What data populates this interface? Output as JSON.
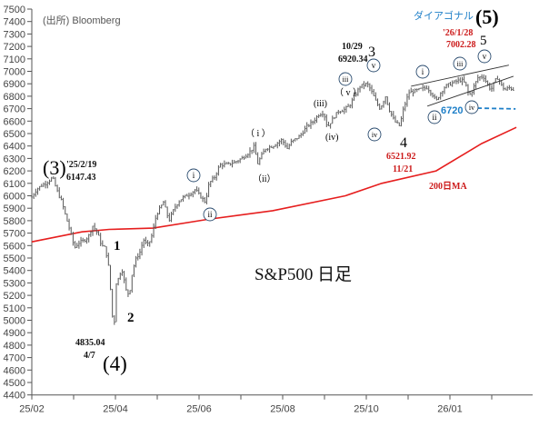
{
  "chart_data": {
    "type": "ohlc",
    "title": "S&P500 日足",
    "source": "(出所) Bloomberg",
    "xunit": "months since 2025/02",
    "ylim": [
      4400,
      7500
    ],
    "yticks": [
      4400,
      4500,
      4600,
      4700,
      4800,
      4900,
      5000,
      5100,
      5200,
      5300,
      5400,
      5500,
      5600,
      5700,
      5800,
      5900,
      6000,
      6100,
      6200,
      6300,
      6400,
      6500,
      6600,
      6700,
      6800,
      6900,
      7000,
      7100,
      7200,
      7300,
      7400,
      7500
    ],
    "xticks": [
      {
        "t": 0,
        "label": "25/02"
      },
      {
        "t": 1,
        "label": ""
      },
      {
        "t": 2,
        "label": "25/04"
      },
      {
        "t": 3,
        "label": ""
      },
      {
        "t": 4,
        "label": "25/06"
      },
      {
        "t": 5,
        "label": ""
      },
      {
        "t": 6,
        "label": "25/08"
      },
      {
        "t": 7,
        "label": ""
      },
      {
        "t": 8,
        "label": "25/10"
      },
      {
        "t": 9,
        "label": ""
      },
      {
        "t": 10,
        "label": "26/01"
      },
      {
        "t": 11,
        "label": ""
      }
    ],
    "price_path": [
      [
        0,
        5990
      ],
      [
        0.11,
        6050
      ],
      [
        0.22,
        6080
      ],
      [
        0.33,
        6100
      ],
      [
        0.5,
        6147
      ],
      [
        0.59,
        6050
      ],
      [
        0.72,
        5950
      ],
      [
        0.8,
        5850
      ],
      [
        0.93,
        5700
      ],
      [
        1.02,
        5580
      ],
      [
        1.11,
        5620
      ],
      [
        1.24,
        5640
      ],
      [
        1.35,
        5670
      ],
      [
        1.46,
        5760
      ],
      [
        1.57,
        5700
      ],
      [
        1.67,
        5600
      ],
      [
        1.76,
        5580
      ],
      [
        1.85,
        5400
      ],
      [
        1.91,
        5100
      ],
      [
        1.96,
        4900
      ],
      [
        2.02,
        5300
      ],
      [
        2.09,
        5350
      ],
      [
        2.15,
        5420
      ],
      [
        2.22,
        5300
      ],
      [
        2.28,
        5200
      ],
      [
        2.35,
        5250
      ],
      [
        2.41,
        5400
      ],
      [
        2.5,
        5500
      ],
      [
        2.59,
        5550
      ],
      [
        2.67,
        5650
      ],
      [
        2.76,
        5600
      ],
      [
        2.85,
        5650
      ],
      [
        2.98,
        5850
      ],
      [
        3.07,
        5900
      ],
      [
        3.15,
        5950
      ],
      [
        3.28,
        5800
      ],
      [
        3.41,
        5900
      ],
      [
        3.5,
        5950
      ],
      [
        3.59,
        5980
      ],
      [
        3.8,
        6020
      ],
      [
        3.91,
        6050
      ],
      [
        4.02,
        6000
      ],
      [
        4.15,
        5950
      ],
      [
        4.24,
        6100
      ],
      [
        4.37,
        6150
      ],
      [
        4.5,
        6250
      ],
      [
        4.67,
        6250
      ],
      [
        4.85,
        6270
      ],
      [
        5.02,
        6300
      ],
      [
        5.2,
        6350
      ],
      [
        5.33,
        6400
      ],
      [
        5.39,
        6250
      ],
      [
        5.46,
        6300
      ],
      [
        5.59,
        6380
      ],
      [
        5.76,
        6400
      ],
      [
        5.98,
        6450
      ],
      [
        6.11,
        6380
      ],
      [
        6.2,
        6430
      ],
      [
        6.41,
        6480
      ],
      [
        6.59,
        6560
      ],
      [
        6.74,
        6600
      ],
      [
        6.85,
        6650
      ],
      [
        6.98,
        6670
      ],
      [
        7.07,
        6550
      ],
      [
        7.2,
        6620
      ],
      [
        7.33,
        6680
      ],
      [
        7.46,
        6690
      ],
      [
        7.59,
        6720
      ],
      [
        7.72,
        6800
      ],
      [
        7.85,
        6880
      ],
      [
        8.02,
        6900
      ],
      [
        8.11,
        6850
      ],
      [
        8.24,
        6750
      ],
      [
        8.33,
        6700
      ],
      [
        8.46,
        6800
      ],
      [
        8.54,
        6700
      ],
      [
        8.67,
        6600
      ],
      [
        8.8,
        6560
      ],
      [
        8.89,
        6700
      ],
      [
        9.02,
        6830
      ],
      [
        9.15,
        6840
      ],
      [
        9.33,
        6860
      ],
      [
        9.46,
        6870
      ],
      [
        9.59,
        6810
      ],
      [
        9.67,
        6760
      ],
      [
        9.76,
        6820
      ],
      [
        9.89,
        6880
      ],
      [
        10.02,
        6900
      ],
      [
        10.15,
        6920
      ],
      [
        10.28,
        6930
      ],
      [
        10.37,
        6900
      ],
      [
        10.46,
        6800
      ],
      [
        10.54,
        6850
      ],
      [
        10.67,
        6950
      ],
      [
        10.8,
        6960
      ],
      [
        10.89,
        6900
      ],
      [
        10.98,
        6850
      ],
      [
        11.07,
        6920
      ],
      [
        11.15,
        6950
      ],
      [
        11.24,
        6880
      ],
      [
        11.33,
        6850
      ],
      [
        11.41,
        6870
      ],
      [
        11.54,
        6850
      ]
    ],
    "ma200": {
      "label": "200日MA",
      "color": "#e61e1e",
      "points": [
        [
          0,
          5630
        ],
        [
          1.2,
          5710
        ],
        [
          1.85,
          5730
        ],
        [
          2.9,
          5740
        ],
        [
          4.2,
          5810
        ],
        [
          5.76,
          5880
        ],
        [
          7.5,
          6000
        ],
        [
          8.37,
          6100
        ],
        [
          9.67,
          6200
        ],
        [
          10.76,
          6420
        ],
        [
          11.59,
          6550
        ]
      ]
    },
    "channel": {
      "upper": [
        [
          9.07,
          6880
        ],
        [
          11.41,
          7050
        ]
      ],
      "lower": [
        [
          9.46,
          6720
        ],
        [
          11.52,
          6960
        ]
      ]
    },
    "support": {
      "label": "6720",
      "value": 6720,
      "range": [
        10.48,
        11.57
      ],
      "color": "#1e7fc8"
    },
    "annotations": {
      "w3_big": "(3)",
      "w3_date": "'25/2/19",
      "w3_value": "6147.43",
      "w1": "1",
      "w2": "2",
      "w4_value": "4835.04",
      "w4_date": "4/7",
      "w4_big": "(4)",
      "ci_a": "i",
      "cii_a": "ii",
      "pi": "（ i ）",
      "pii": "（ii）",
      "piii": "(iii)",
      "pv": "（ v ）",
      "piv": "(iv)",
      "ciii_b": "iii",
      "cv_b": "v",
      "civ_b": "iv",
      "w3_top_date": "10/29",
      "w3_top_value": "6920.34",
      "w3": "3",
      "w4": "4",
      "w4b_value": "6521.92",
      "w4b_date": "11/21",
      "diagonal": "ダイアゴナル",
      "w5_big": "(5)",
      "w5_date": "'26/1/28",
      "w5_value": "7002.28",
      "w5": "5",
      "ci_c": "i",
      "ciii_c": "iii",
      "cv_c": "v",
      "cii_c": "ii",
      "civ_c": "iv"
    }
  }
}
